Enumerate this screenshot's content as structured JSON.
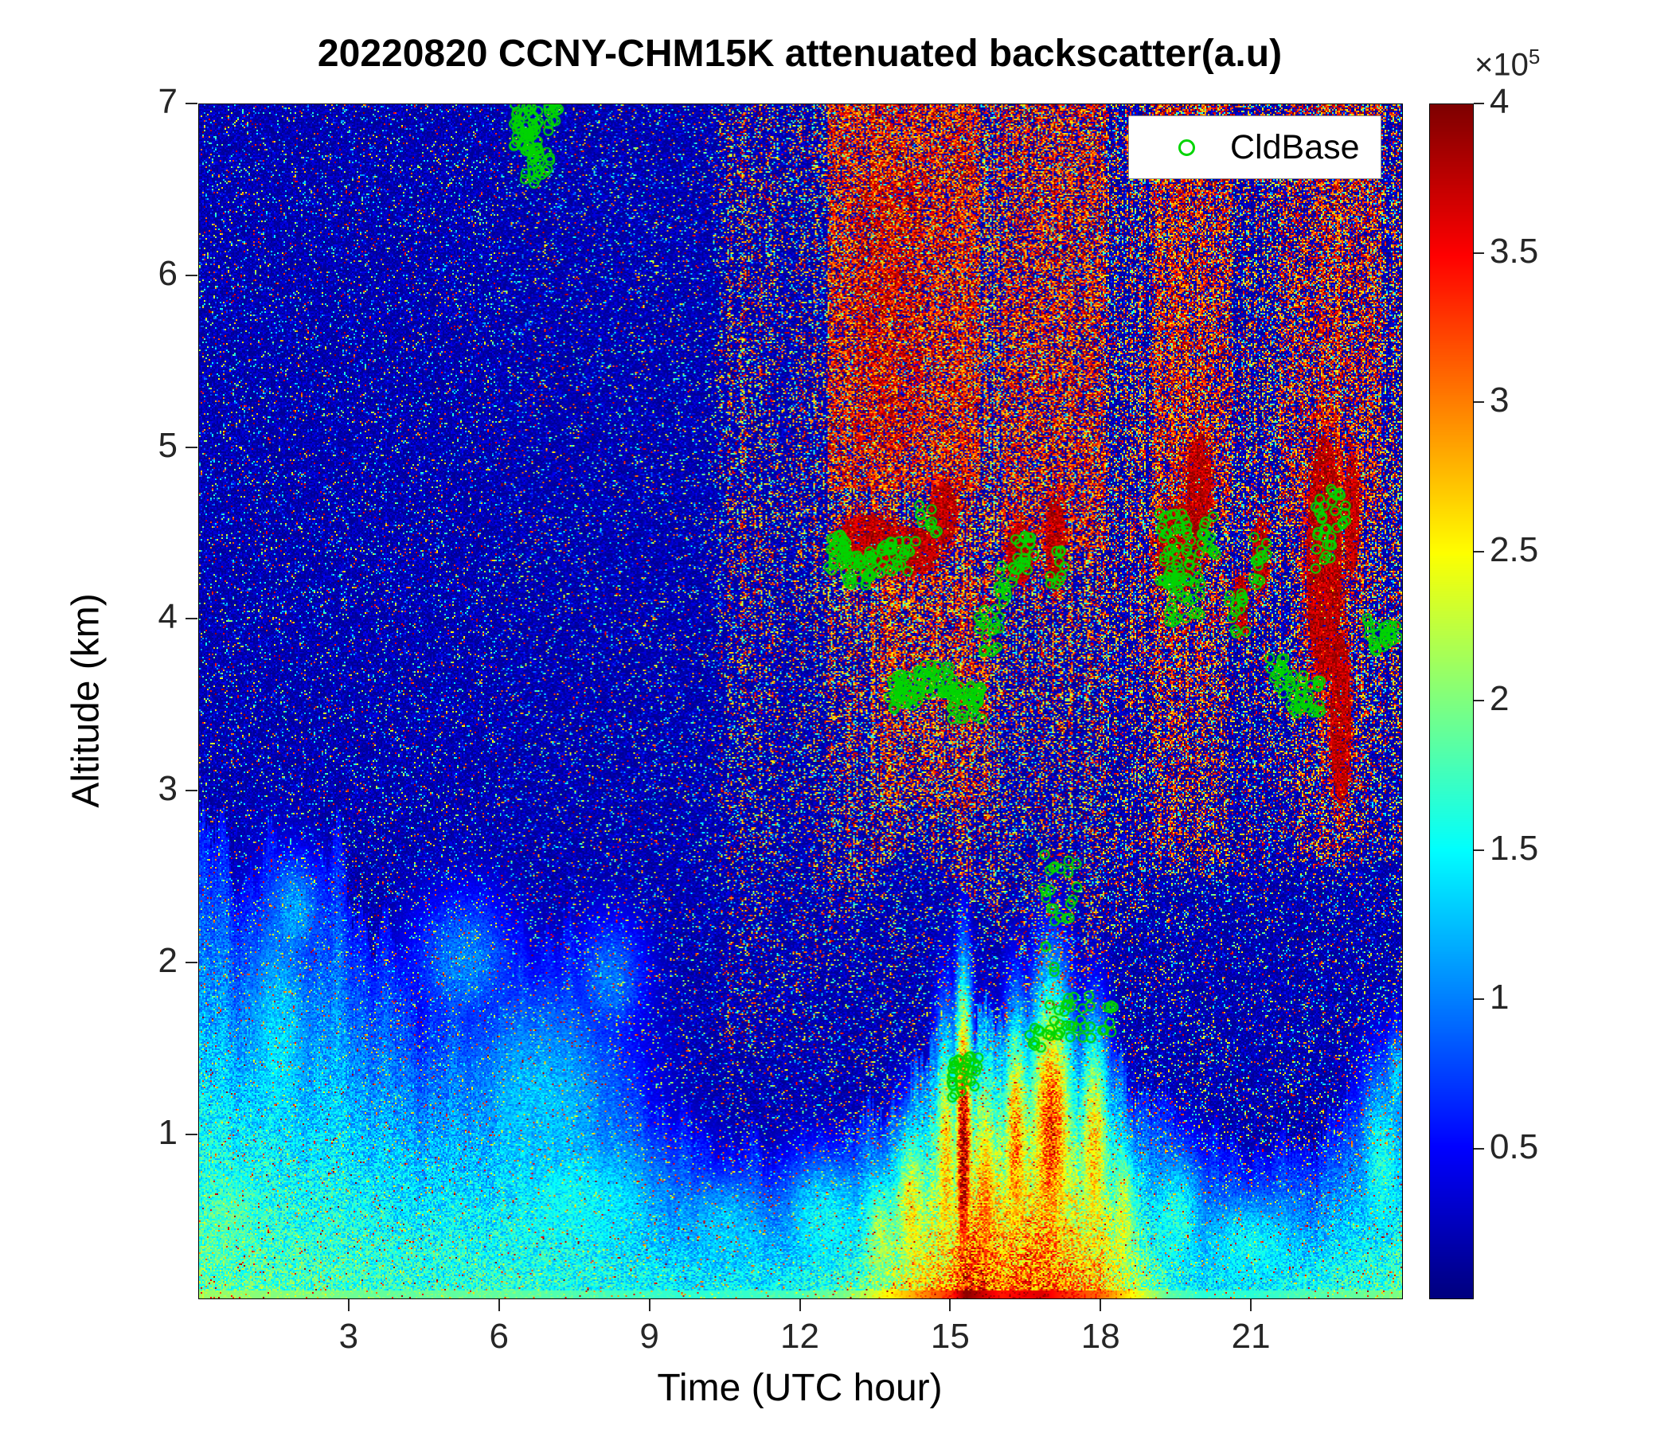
{
  "chart_data": {
    "type": "heatmap",
    "title": "20220820 CCNY-CHM15K attenuated backscatter(a.u)",
    "xlabel": "Time (UTC hour)",
    "ylabel": "Altitude (km)",
    "x_range": [
      0,
      24
    ],
    "x_ticks": [
      3,
      6,
      9,
      12,
      15,
      18,
      21
    ],
    "y_range": [
      0.05,
      7
    ],
    "y_ticks": [
      1,
      2,
      3,
      4,
      5,
      6,
      7
    ],
    "colorbar": {
      "colormap": "jet",
      "value_range": [
        0,
        4
      ],
      "ticks": [
        "0.5",
        "1",
        "1.5",
        "2",
        "2.5",
        "3",
        "3.5",
        "4"
      ],
      "exp_base": "×10",
      "exp_power": "5"
    },
    "legend": [
      {
        "label": "CldBase",
        "marker": "circle",
        "color": "#00d500"
      }
    ],
    "field_model": {
      "background_speckle_prob": 0.16,
      "boundary_layer_top_km": [
        [
          0,
          2.7
        ],
        [
          1,
          2.6
        ],
        [
          2,
          2.5
        ],
        [
          2.8,
          2.6
        ],
        [
          3.5,
          2.2
        ],
        [
          4,
          2.0
        ],
        [
          5,
          1.9
        ],
        [
          6,
          2.0
        ],
        [
          7,
          2.2
        ],
        [
          8,
          1.9
        ],
        [
          8.7,
          1.4
        ],
        [
          9.5,
          1.1
        ],
        [
          10.5,
          0.95
        ],
        [
          11.5,
          0.9
        ],
        [
          12.5,
          0.95
        ],
        [
          13.5,
          1.1
        ],
        [
          14.5,
          1.4
        ],
        [
          15.5,
          1.6
        ],
        [
          16.5,
          1.7
        ],
        [
          17.5,
          1.7
        ],
        [
          18.5,
          1.4
        ],
        [
          19.5,
          1.1
        ],
        [
          20.5,
          0.95
        ],
        [
          21.5,
          0.9
        ],
        [
          22.5,
          1.05
        ],
        [
          23.3,
          1.3
        ],
        [
          24,
          1.45
        ]
      ],
      "surface_intensity": [
        [
          0,
          1.9
        ],
        [
          2,
          1.8
        ],
        [
          4,
          1.7
        ],
        [
          6,
          1.7
        ],
        [
          8,
          1.6
        ],
        [
          10,
          1.5
        ],
        [
          12,
          1.6
        ],
        [
          13,
          1.8
        ],
        [
          13.8,
          2.3
        ],
        [
          14.5,
          2.7
        ],
        [
          15,
          3.0
        ],
        [
          15.3,
          3.6
        ],
        [
          16,
          3.1
        ],
        [
          16.8,
          3.3
        ],
        [
          17.3,
          3.0
        ],
        [
          18,
          2.8
        ],
        [
          18.7,
          2.2
        ],
        [
          19.3,
          1.7
        ],
        [
          20,
          1.5
        ],
        [
          21,
          1.5
        ],
        [
          22,
          1.6
        ],
        [
          23,
          1.7
        ],
        [
          24,
          1.8
        ]
      ],
      "rain_column_intensity": [
        [
          0,
          0
        ],
        [
          10.2,
          0
        ],
        [
          10.6,
          0.3
        ],
        [
          11,
          0.4
        ],
        [
          11.4,
          0.25
        ],
        [
          12,
          0.3
        ],
        [
          12.6,
          0.45
        ],
        [
          13,
          0.6
        ],
        [
          13.5,
          0.75
        ],
        [
          14,
          0.8
        ],
        [
          14.5,
          0.8
        ],
        [
          15,
          0.85
        ],
        [
          15.5,
          0.75
        ],
        [
          16,
          0.6
        ],
        [
          16.4,
          0.5
        ],
        [
          16.8,
          0.65
        ],
        [
          17.2,
          0.75
        ],
        [
          17.6,
          0.55
        ],
        [
          18,
          0.5
        ],
        [
          18.4,
          0.4
        ],
        [
          19,
          0.55
        ],
        [
          19.5,
          0.7
        ],
        [
          20,
          0.65
        ],
        [
          20.5,
          0.45
        ],
        [
          21,
          0.4
        ],
        [
          21.5,
          0.5
        ],
        [
          22,
          0.6
        ],
        [
          22.5,
          0.65
        ],
        [
          23,
          0.6
        ],
        [
          23.5,
          0.5
        ],
        [
          24,
          0.45
        ]
      ],
      "rain_base_km": [
        [
          0,
          2.6
        ],
        [
          10.4,
          1.5
        ],
        [
          11.5,
          1.5
        ],
        [
          12.5,
          2.0
        ],
        [
          13.2,
          2.4
        ],
        [
          14.0,
          2.7
        ],
        [
          15.0,
          2.5
        ],
        [
          16.0,
          2.2
        ],
        [
          16.9,
          1.7
        ],
        [
          17.6,
          1.9
        ],
        [
          18.5,
          2.2
        ],
        [
          19.2,
          2.5
        ],
        [
          20.5,
          2.5
        ],
        [
          24,
          2.6
        ]
      ],
      "smooth_blobs": [
        [
          0.6,
          0.5,
          1.3,
          0.6,
          1.7
        ],
        [
          1.6,
          1.5,
          1.0,
          1.0,
          1.35
        ],
        [
          1.9,
          2.3,
          0.7,
          0.4,
          1.15
        ],
        [
          5.3,
          2.0,
          1.3,
          0.5,
          1.0
        ],
        [
          6.8,
          1.2,
          2.2,
          0.8,
          1.25
        ],
        [
          7.6,
          0.6,
          2.6,
          0.55,
          1.45
        ],
        [
          8.2,
          1.9,
          0.9,
          0.45,
          0.95
        ],
        [
          10.5,
          0.45,
          1.5,
          0.4,
          1.3
        ],
        [
          12.5,
          0.5,
          1.2,
          0.45,
          1.5
        ],
        [
          13.6,
          0.4,
          0.5,
          0.5,
          2.1
        ],
        [
          14.2,
          0.55,
          0.45,
          0.6,
          2.5
        ],
        [
          14.9,
          0.8,
          0.28,
          0.9,
          2.7
        ],
        [
          15.25,
          0.9,
          0.2,
          1.0,
          3.9
        ],
        [
          15.7,
          0.6,
          0.28,
          0.85,
          2.9
        ],
        [
          16.3,
          0.9,
          0.32,
          0.85,
          3.0
        ],
        [
          17.0,
          1.0,
          0.5,
          0.95,
          3.3
        ],
        [
          17.85,
          0.9,
          0.38,
          0.8,
          2.7
        ],
        [
          18.45,
          0.5,
          0.35,
          0.6,
          2.3
        ],
        [
          19.5,
          0.5,
          0.8,
          0.5,
          1.6
        ],
        [
          21.0,
          0.35,
          1.6,
          0.4,
          1.5
        ],
        [
          23.6,
          0.8,
          0.6,
          0.7,
          1.6
        ],
        [
          23.9,
          1.3,
          0.3,
          0.4,
          1.3
        ]
      ],
      "dense_cloud_blobs": [
        [
          13.35,
          4.45,
          0.6,
          0.17
        ],
        [
          14.25,
          4.4,
          0.5,
          0.14
        ],
        [
          14.85,
          4.62,
          0.28,
          0.18
        ],
        [
          16.38,
          4.38,
          0.26,
          0.18
        ],
        [
          17.08,
          4.45,
          0.2,
          0.26
        ],
        [
          19.55,
          4.45,
          0.45,
          0.22
        ],
        [
          19.95,
          4.78,
          0.25,
          0.28
        ],
        [
          20.78,
          4.08,
          0.15,
          0.18
        ],
        [
          21.18,
          4.38,
          0.16,
          0.22
        ],
        [
          22.45,
          4.35,
          0.35,
          0.72
        ],
        [
          22.78,
          3.42,
          0.2,
          0.5
        ],
        [
          23.0,
          4.62,
          0.15,
          0.35
        ]
      ],
      "speckle_regions": [
        [
          12.55,
          15.6,
          4.75,
          7.0,
          0.5,
          2.7,
          4.0
        ],
        [
          13.1,
          14.4,
          5.0,
          6.6,
          0.25,
          3.4,
          4.0
        ],
        [
          13.6,
          15.75,
          2.9,
          4.25,
          0.28,
          2.5,
          4.0
        ],
        [
          16.0,
          18.1,
          4.4,
          7.0,
          0.38,
          2.7,
          4.0
        ],
        [
          19.0,
          20.6,
          4.55,
          7.0,
          0.36,
          2.7,
          4.0
        ],
        [
          21.6,
          23.6,
          4.55,
          7.0,
          0.3,
          2.7,
          4.0
        ],
        [
          19.0,
          20.5,
          2.6,
          4.4,
          0.18,
          2.5,
          4.0
        ],
        [
          21.8,
          23.3,
          2.6,
          4.4,
          0.15,
          2.5,
          4.0
        ]
      ]
    },
    "cloud_base_clusters": [
      [
        6.25,
        6.8,
        6.72,
        7.0,
        40
      ],
      [
        6.5,
        7.0,
        6.52,
        6.88,
        35
      ],
      [
        6.95,
        7.2,
        6.88,
        7.02,
        14
      ],
      [
        12.55,
        12.95,
        4.28,
        4.5,
        28
      ],
      [
        12.9,
        13.65,
        4.2,
        4.4,
        35
      ],
      [
        13.6,
        14.3,
        4.28,
        4.46,
        30
      ],
      [
        14.35,
        14.75,
        4.5,
        4.68,
        10
      ],
      [
        13.75,
        14.4,
        3.48,
        3.68,
        42
      ],
      [
        14.35,
        15.05,
        3.55,
        3.74,
        36
      ],
      [
        15.0,
        15.62,
        3.42,
        3.62,
        40
      ],
      [
        15.55,
        15.98,
        3.78,
        4.08,
        18
      ],
      [
        15.95,
        16.3,
        4.1,
        4.32,
        16
      ],
      [
        16.28,
        16.68,
        4.28,
        4.5,
        18
      ],
      [
        15.0,
        15.55,
        1.22,
        1.48,
        32
      ],
      [
        16.55,
        16.8,
        1.5,
        1.66,
        8
      ],
      [
        16.85,
        17.08,
        1.55,
        2.68,
        20
      ],
      [
        17.0,
        17.6,
        2.25,
        2.6,
        10
      ],
      [
        17.1,
        17.8,
        1.55,
        1.82,
        24
      ],
      [
        17.95,
        18.25,
        1.58,
        1.76,
        8
      ],
      [
        16.95,
        17.35,
        4.18,
        4.44,
        10
      ],
      [
        19.15,
        19.8,
        4.18,
        4.62,
        48
      ],
      [
        19.3,
        19.98,
        3.98,
        4.3,
        32
      ],
      [
        19.95,
        20.32,
        4.32,
        4.6,
        16
      ],
      [
        20.55,
        20.92,
        3.9,
        4.16,
        14
      ],
      [
        21.0,
        21.32,
        4.2,
        4.5,
        14
      ],
      [
        21.35,
        21.68,
        3.56,
        3.8,
        14
      ],
      [
        21.7,
        22.38,
        3.44,
        3.68,
        36
      ],
      [
        22.25,
        22.62,
        4.28,
        4.78,
        24
      ],
      [
        22.6,
        22.88,
        4.52,
        4.76,
        10
      ],
      [
        23.3,
        23.72,
        3.8,
        4.02,
        20
      ],
      [
        23.72,
        23.98,
        3.84,
        3.98,
        8
      ]
    ]
  }
}
